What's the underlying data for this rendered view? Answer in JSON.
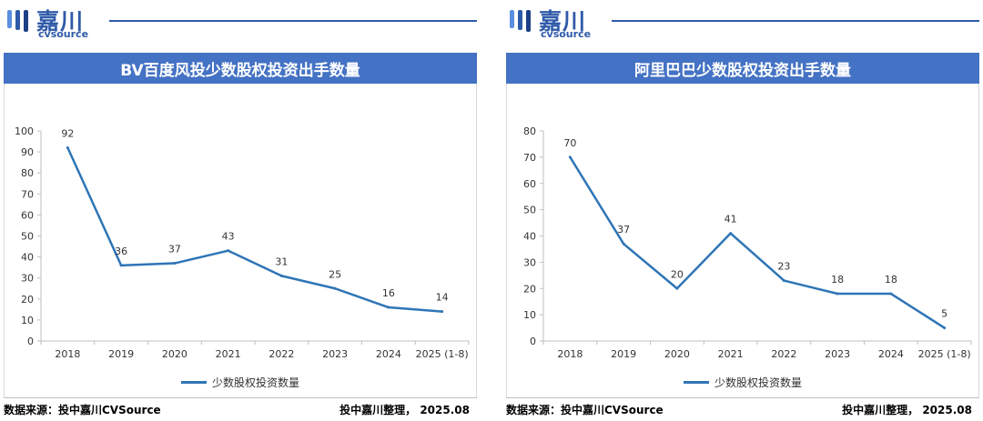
{
  "brand": {
    "name_cn": "嘉川",
    "name_en": "cvsource",
    "color": "#2f5aa8"
  },
  "colors": {
    "title_bar": "#4472c4",
    "line": "#2e75b6"
  },
  "footer": {
    "source": "数据来源：投中嘉川CVSource",
    "org": "投中嘉川整理， 2025.08"
  },
  "chart_data": [
    {
      "type": "line",
      "title": "BV百度风投少数股权投资出手数量",
      "categories": [
        "2018",
        "2019",
        "2020",
        "2021",
        "2022",
        "2023",
        "2024",
        "2025 (1-8)"
      ],
      "series": [
        {
          "name": "少数股权投资数量",
          "values": [
            92,
            36,
            37,
            43,
            31,
            25,
            16,
            14
          ]
        }
      ],
      "ylim": [
        0,
        100
      ],
      "yticks": [
        0,
        10,
        20,
        30,
        40,
        50,
        60,
        70,
        80,
        90,
        100
      ],
      "legend": "bottom"
    },
    {
      "type": "line",
      "title": "阿里巴巴少数股权投资出手数量",
      "categories": [
        "2018",
        "2019",
        "2020",
        "2021",
        "2022",
        "2023",
        "2024",
        "2025 (1-8)"
      ],
      "series": [
        {
          "name": "少数股权投资数量",
          "values": [
            70,
            37,
            20,
            41,
            23,
            18,
            18,
            5
          ]
        }
      ],
      "ylim": [
        0,
        80
      ],
      "yticks": [
        0,
        10,
        20,
        30,
        40,
        50,
        60,
        70,
        80
      ],
      "legend": "bottom"
    }
  ]
}
